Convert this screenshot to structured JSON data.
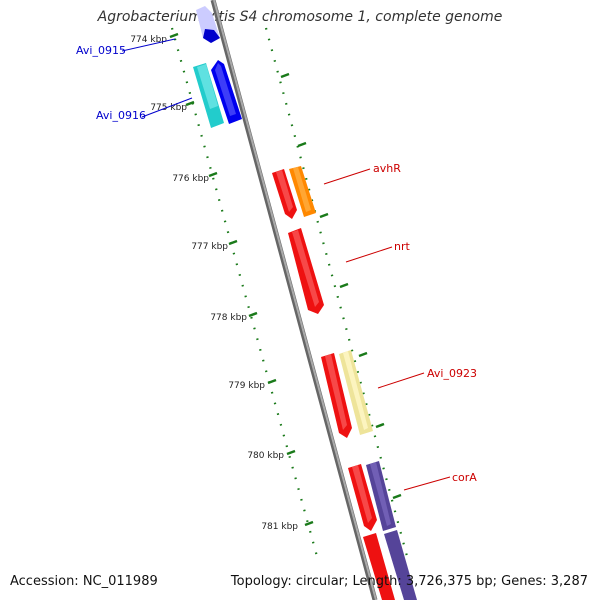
{
  "title": "Agrobacterium vitis S4 chromosome 1, complete genome",
  "accession": "Accession: NC_011989",
  "summary": "Topology: circular; Length: 3,726,375 bp; Genes: 3,287",
  "scale_labels": [
    "774 kbp",
    "775 kbp",
    "776 kbp",
    "777 kbp",
    "778 kbp",
    "779 kbp",
    "780 kbp",
    "781 kbp"
  ],
  "gene_labels": [
    {
      "name": "Avi_0915",
      "color": "#0000cc"
    },
    {
      "name": "Avi_0916",
      "color": "#0000cc"
    },
    {
      "name": "avhR",
      "color": "#cc0000"
    },
    {
      "name": "nrt",
      "color": "#cc0000"
    },
    {
      "name": "Avi_0923",
      "color": "#cc0000"
    },
    {
      "name": "corA",
      "color": "#cc0000"
    }
  ],
  "colors": {
    "backbone": "#8a8a8a",
    "ticks": "#1a7a1a",
    "forward_red": "#ee1111",
    "orange": "#ff8800",
    "pale_yellow": "#eee49a",
    "cyan": "#22cccc",
    "blue": "#0000ee",
    "pale_blue": "#c8c8ff",
    "purple": "#554499"
  }
}
